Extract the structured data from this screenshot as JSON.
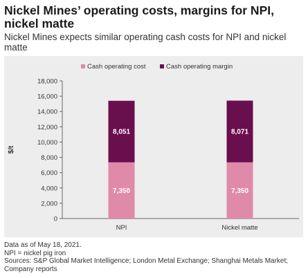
{
  "header": {
    "title": "Nickel Mines’ operating costs, margins for NPI, nickel matte",
    "subtitle": "Nickel Mines expects similar operating cash costs for NPI and nickel matte"
  },
  "chart_data": {
    "type": "bar",
    "stacked": true,
    "categories": [
      "NPI",
      "Nickel matte"
    ],
    "series": [
      {
        "name": "Cash operating cost",
        "values": [
          7350,
          7350
        ],
        "labels": [
          "7,350",
          "7,350"
        ],
        "color": "#e08aa9"
      },
      {
        "name": "Cash operating margin",
        "values": [
          8051,
          8071
        ],
        "labels": [
          "8,051",
          "8,071"
        ],
        "color": "#6a0f4e"
      }
    ],
    "ylabel": "$/t",
    "ylim": [
      0,
      18000
    ],
    "yticks": [
      0,
      2000,
      4000,
      6000,
      8000,
      10000,
      12000,
      14000,
      16000,
      18000
    ],
    "ytick_labels": [
      "0",
      "2,000",
      "4,000",
      "6,000",
      "8,000",
      "10,000",
      "12,000",
      "14,000",
      "16,000",
      "18,000"
    ],
    "legend_position": "top",
    "grid": false
  },
  "notes": [
    "Data as of May 18, 2021.",
    "NPI = nickel pig iron",
    "Sources: S&P Global Market Intelligence; London Metal Exchange; Shanghai Metals Market; Company reports"
  ]
}
